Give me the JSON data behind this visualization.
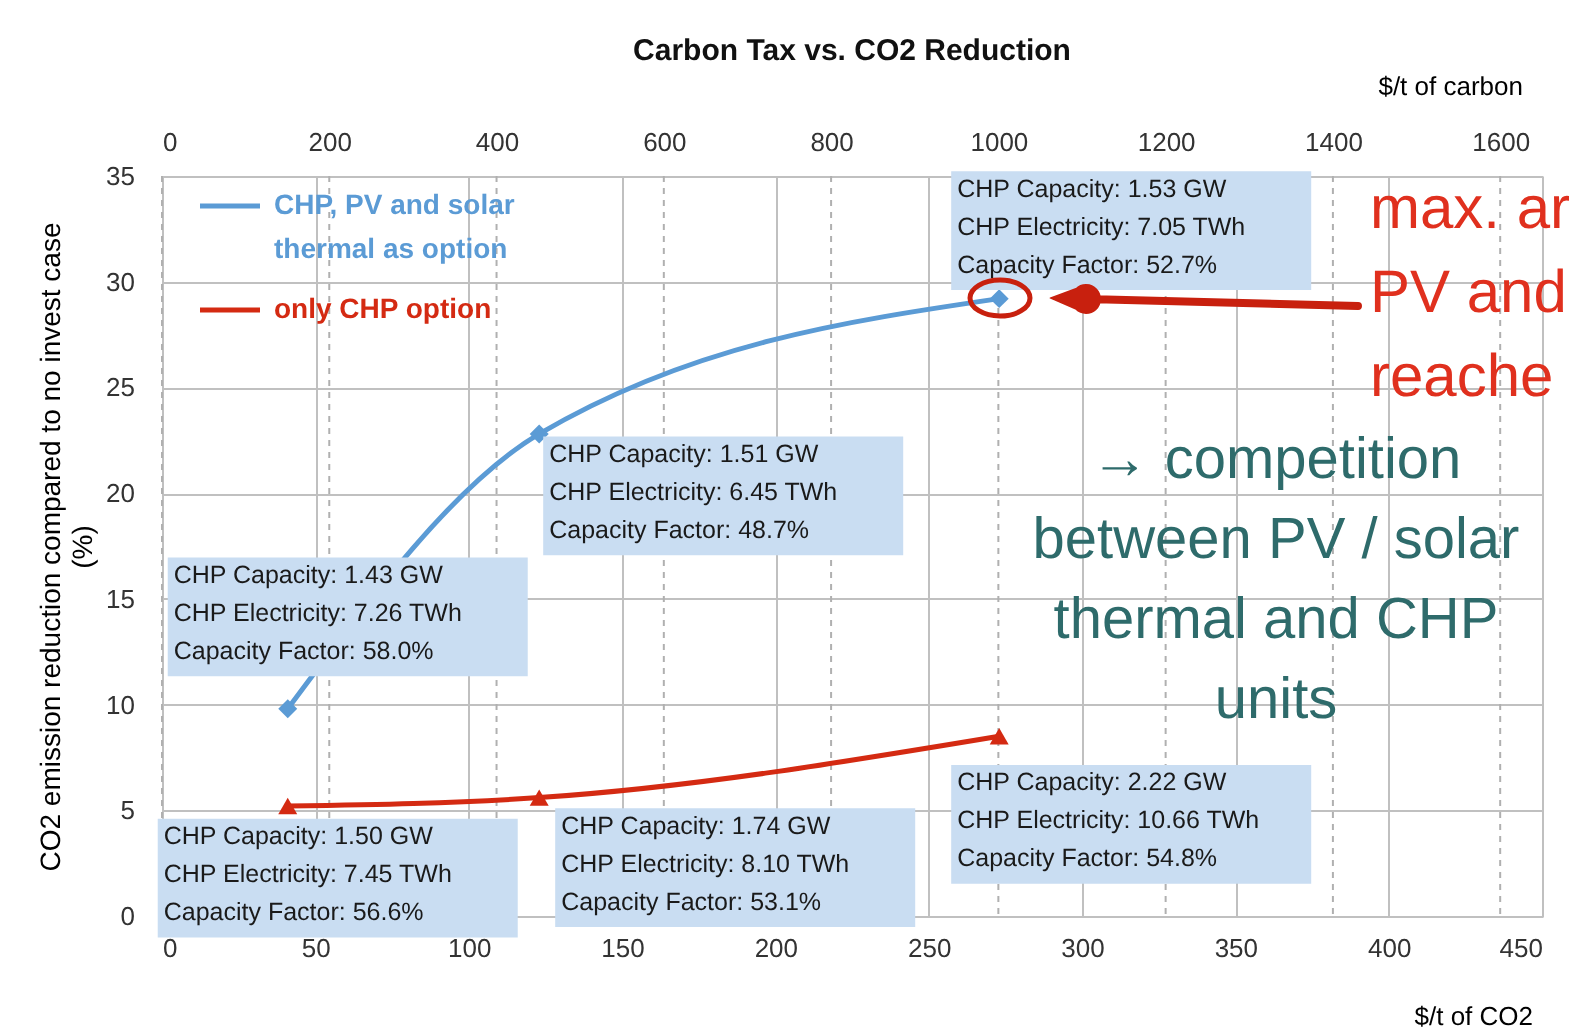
{
  "chart_data": {
    "type": "line",
    "title": "Carbon Tax vs. CO2 Reduction",
    "xlabel": "$/t of CO2",
    "x2label": "$/t  of carbon",
    "ylabel": "CO2 emission reduction compared to no invest case (%)",
    "xlim": [
      0,
      450
    ],
    "xticks": [
      0,
      50,
      100,
      150,
      200,
      250,
      300,
      350,
      400,
      450
    ],
    "x2lim": [
      0,
      1650
    ],
    "x2ticks": [
      0,
      200,
      400,
      600,
      800,
      1000,
      1200,
      1400,
      1600
    ],
    "ylim": [
      0,
      35
    ],
    "yticks": [
      0,
      5,
      10,
      15,
      20,
      25,
      30,
      35
    ],
    "grid": true,
    "legend": "top left",
    "line_style": "solid",
    "series": [
      {
        "name": "CHP,  PV and  solar thermal as option",
        "color": "#5b9bd5",
        "marker": "diamond",
        "x": [
          41,
          123,
          273
        ],
        "values": [
          9.8,
          22.8,
          29.2
        ]
      },
      {
        "name": "only CHP option",
        "color": "#d42a12",
        "marker": "triangle",
        "x": [
          41,
          123,
          273
        ],
        "values": [
          5.2,
          5.6,
          8.5
        ]
      }
    ],
    "annotations": [
      {
        "text": "CHP Capacity: 1.43 GW\nCHP Electricity: 7.26 TWh\nCapacity Factor: 58.0%",
        "x": 41,
        "y": 9.8
      },
      {
        "text": "CHP Capacity: 1.51 GW\nCHP Electricity: 6.45 TWh\nCapacity Factor: 48.7%",
        "x": 123,
        "y": 22.8
      },
      {
        "text": "CHP Capacity: 1.53 GW\nCHP Electricity: 7.05 TWh\nCapacity Factor: 52.7%",
        "x": 273,
        "y": 29.2
      },
      {
        "text": "CHP Capacity: 1.50 GW\nCHP Electricity: 7.45 TWh\nCapacity Factor: 56.6%",
        "x": 41,
        "y": 5.2
      },
      {
        "text": "CHP Capacity: 1.74 GW\nCHP Electricity: 8.10 TWh\nCapacity Factor: 53.1%",
        "x": 123,
        "y": 5.6
      },
      {
        "text": "CHP Capacity: 2.22 GW\nCHP Electricity: 10.66 TWh\nCapacity Factor: 54.8%",
        "x": 273,
        "y": 8.5
      },
      "max. ar\nPV and\nreache",
      "→ competition\nbetween PV / solar\nthermal and CHP\nunits"
    ]
  }
}
